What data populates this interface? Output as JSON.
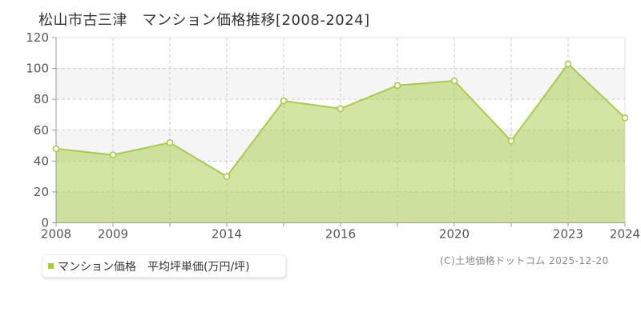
{
  "title": "松山市古三津　マンション価格推移[2008-2024]",
  "legend": {
    "label": "マンション価格　平均坪単価(万円/坪)",
    "marker_color": "#a5ce39"
  },
  "footer": {
    "copyright": "(C)土地価格ドットコム 2025-12-20"
  },
  "chart_data": {
    "type": "area",
    "title": "松山市古三津 マンション価格推移[2008-2024]",
    "series_name": "マンション価格 平均坪単価(万円/坪)",
    "categories": [
      "2008",
      "2009",
      "",
      "2014",
      "",
      "2016",
      "",
      "2020",
      "",
      "2023",
      "2024"
    ],
    "values": [
      48,
      44,
      52,
      30,
      79,
      74,
      89,
      92,
      53,
      103,
      68
    ],
    "xlabel": "",
    "ylabel": "",
    "ylim": [
      0,
      120
    ],
    "ytick_interval": 20,
    "grid": true,
    "legend_position": "bottom-left",
    "colors": {
      "line": "#a8cc46",
      "fill": "#a8cc46",
      "fill_opacity": 0.5,
      "marker_fill": "#ffffff",
      "band": "#f5f5f5",
      "grid": "#cccccc",
      "border": "#e2e2e2",
      "axis": "#999999",
      "tick_label": "#555555"
    }
  }
}
